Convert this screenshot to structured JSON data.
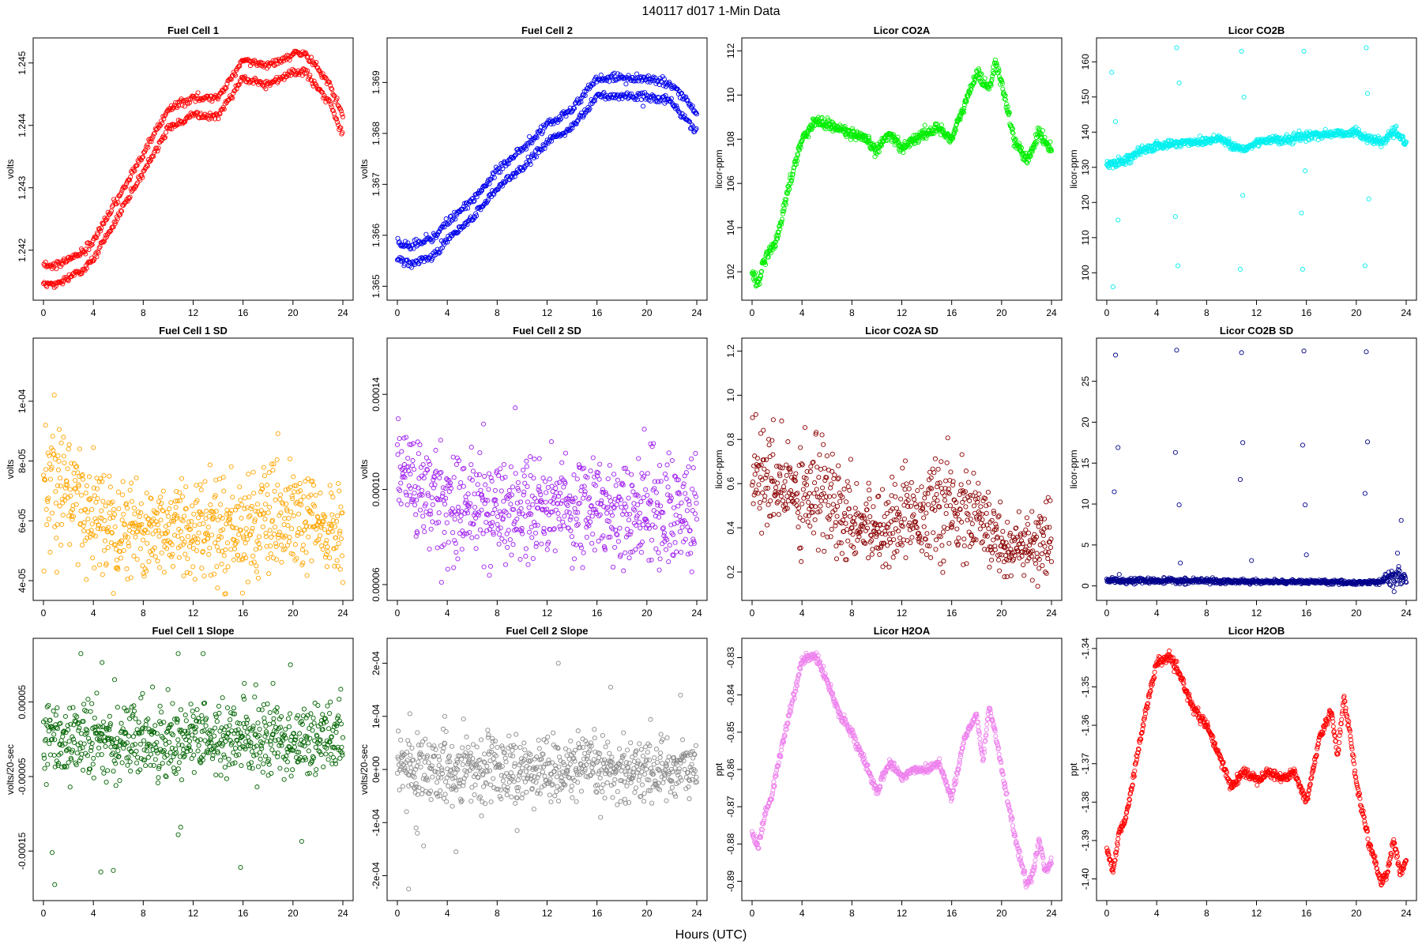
{
  "header": {
    "title": "140117   d017   1-Min Data"
  },
  "xlabel": "Hours (UTC)",
  "x_ticks": [
    "0",
    "4",
    "8",
    "12",
    "16",
    "20",
    "24"
  ],
  "chart_data": [
    {
      "type": "scatter",
      "title": "Fuel Cell 1",
      "ylabel": "volts",
      "color": "#ff0000",
      "xlim": [
        0,
        24
      ],
      "ylim": [
        1.2413,
        1.2453
      ],
      "yticks": [
        1.242,
        1.243,
        1.244,
        1.245
      ],
      "ytick_labels": [
        "1.242",
        "1.243",
        "1.244",
        "1.245"
      ],
      "mode": "trend",
      "noise": 3e-05,
      "split": 0.0003,
      "x": [
        0,
        1,
        2,
        3,
        4,
        6,
        8,
        10,
        12,
        14,
        16,
        18,
        20,
        21,
        23,
        24
      ],
      "y": [
        1.2416,
        1.2416,
        1.2417,
        1.2418,
        1.242,
        1.2427,
        1.2434,
        1.2441,
        1.2443,
        1.2443,
        1.2449,
        1.2448,
        1.245,
        1.245,
        1.2445,
        1.244
      ]
    },
    {
      "type": "scatter",
      "title": "Fuel Cell 2",
      "ylabel": "volts",
      "color": "#0000ee",
      "xlim": [
        0,
        24
      ],
      "ylim": [
        1.36485,
        1.36975
      ],
      "yticks": [
        1.365,
        1.366,
        1.367,
        1.368,
        1.369
      ],
      "ytick_labels": [
        "1.365",
        "1.366",
        "1.367",
        "1.368",
        "1.369"
      ],
      "mode": "trend",
      "noise": 4e-05,
      "split": 0.00035,
      "x": [
        0,
        1,
        2,
        3,
        4,
        6,
        8,
        10,
        12,
        14,
        16,
        18,
        20,
        22,
        23,
        24
      ],
      "y": [
        1.3657,
        1.3656,
        1.3657,
        1.3658,
        1.3661,
        1.3665,
        1.3671,
        1.3675,
        1.368,
        1.3683,
        1.3689,
        1.3689,
        1.3689,
        1.3688,
        1.3685,
        1.3682
      ]
    },
    {
      "type": "scatter",
      "title": "Licor CO2A",
      "ylabel": "licor-ppm",
      "color": "#00ee00",
      "xlim": [
        0,
        24
      ],
      "ylim": [
        101.0,
        112.3
      ],
      "yticks": [
        102,
        104,
        106,
        108,
        110,
        112
      ],
      "ytick_labels": [
        "102",
        "104",
        "106",
        "108",
        "110",
        "112"
      ],
      "mode": "trend",
      "noise": 0.12,
      "split": 0,
      "x": [
        0,
        0.5,
        1,
        1.5,
        2,
        3,
        4,
        5,
        6,
        7,
        8,
        9,
        10,
        11,
        12,
        13,
        14,
        15,
        16,
        17,
        18,
        19,
        19.5,
        20,
        21,
        22,
        23,
        24
      ],
      "y": [
        102.0,
        101.5,
        102.5,
        103.0,
        103.5,
        106.0,
        108.0,
        108.8,
        108.7,
        108.5,
        108.2,
        108.0,
        107.5,
        108.3,
        107.6,
        108.0,
        108.3,
        108.5,
        108.0,
        109.5,
        111.0,
        110.3,
        111.5,
        110.5,
        108.0,
        107.0,
        108.3,
        107.5
      ]
    },
    {
      "type": "scatter",
      "title": "Licor CO2B",
      "ylabel": "licor-ppm",
      "color": "#00f0f0",
      "xlim": [
        0,
        24
      ],
      "ylim": [
        94.0,
        165.0
      ],
      "yticks": [
        100,
        110,
        120,
        130,
        140,
        150,
        160
      ],
      "ytick_labels": [
        "100",
        "110",
        "120",
        "130",
        "140",
        "150",
        "160"
      ],
      "mode": "trend",
      "noise": 0.6,
      "split": 0,
      "x": [
        0,
        1,
        2,
        3,
        4,
        5,
        6,
        8,
        9,
        10,
        11,
        12,
        13,
        14,
        16,
        18,
        20,
        21,
        22,
        23,
        24
      ],
      "y": [
        131,
        131.5,
        133,
        135,
        136,
        136.5,
        137,
        137.5,
        138.5,
        136,
        135,
        137,
        138,
        137.5,
        139,
        139.5,
        140,
        138,
        137,
        140,
        137
      ],
      "spikes": [
        [
          0.4,
          157
        ],
        [
          0.5,
          96
        ],
        [
          0.7,
          143
        ],
        [
          0.9,
          115
        ],
        [
          5.6,
          164
        ],
        [
          5.7,
          102
        ],
        [
          5.8,
          154
        ],
        [
          5.5,
          116
        ],
        [
          10.8,
          163
        ],
        [
          10.7,
          101
        ],
        [
          10.9,
          122
        ],
        [
          11.0,
          150
        ],
        [
          15.8,
          163
        ],
        [
          15.7,
          101
        ],
        [
          15.9,
          129
        ],
        [
          15.6,
          117
        ],
        [
          20.8,
          164
        ],
        [
          20.7,
          102
        ],
        [
          20.9,
          151
        ],
        [
          21.0,
          121
        ]
      ]
    },
    {
      "type": "scatter",
      "title": "Fuel Cell 1 SD",
      "ylabel": "volts",
      "color": "#ffa500",
      "xlim": [
        0,
        24
      ],
      "ylim": [
        3.55e-05,
        0.000119
      ],
      "yticks": [
        4e-05,
        6e-05,
        8e-05,
        0.0001
      ],
      "ytick_labels": [
        "4e-05",
        "6e-05",
        "8e-05",
        "1e-04"
      ],
      "mode": "noise",
      "x": [
        0,
        2,
        4,
        8,
        12,
        16,
        20,
        24
      ],
      "y": [
        7.4e-05,
        6.8e-05,
        6.2e-05,
        5.7e-05,
        5.8e-05,
        5.8e-05,
        6e-05,
        5.5e-05
      ],
      "sd": [
        1.1e-05,
        1e-05,
        9e-06,
        8e-06,
        8e-06,
        9e-06,
        9e-06,
        7e-06
      ]
    },
    {
      "type": "scatter",
      "title": "Fuel Cell 2 SD",
      "ylabel": "volts",
      "color": "#a020f0",
      "xlim": [
        0,
        24
      ],
      "ylim": [
        5.6e-05,
        0.000161
      ],
      "yticks": [
        6e-05,
        0.0001,
        0.00014
      ],
      "ytick_labels": [
        "0.00006",
        "0.00010",
        "0.00014"
      ],
      "mode": "noise",
      "x": [
        0,
        2,
        4,
        8,
        12,
        16,
        20,
        24
      ],
      "y": [
        0.00011,
        9.8e-05,
        9.4e-05,
        9.2e-05,
        9.4e-05,
        9.2e-05,
        9.2e-05,
        9e-05
      ],
      "sd": [
        1.2e-05,
        1.1e-05,
        1.1e-05,
        1.1e-05,
        1.1e-05,
        1.1e-05,
        1.2e-05,
        1.1e-05
      ]
    },
    {
      "type": "scatter",
      "title": "Licor CO2A SD",
      "ylabel": "licor-ppm",
      "color": "#8b0000",
      "xlim": [
        0,
        24
      ],
      "ylim": [
        0.1,
        1.23
      ],
      "yticks": [
        0.2,
        0.4,
        0.6,
        0.8,
        1.0,
        1.2
      ],
      "ytick_labels": [
        "0.2",
        "0.4",
        "0.6",
        "0.8",
        "1.0",
        "1.2"
      ],
      "mode": "noise",
      "x": [
        0,
        2,
        4,
        6,
        8,
        10,
        12,
        14,
        16,
        18,
        20,
        22,
        24
      ],
      "y": [
        0.65,
        0.58,
        0.58,
        0.56,
        0.44,
        0.4,
        0.45,
        0.48,
        0.48,
        0.44,
        0.33,
        0.3,
        0.32
      ],
      "sd": [
        0.12,
        0.11,
        0.12,
        0.14,
        0.09,
        0.08,
        0.09,
        0.1,
        0.11,
        0.1,
        0.08,
        0.07,
        0.08
      ]
    },
    {
      "type": "scatter",
      "title": "Licor CO2B SD",
      "ylabel": "licor-ppm",
      "color": "#00008b",
      "xlim": [
        0,
        24
      ],
      "ylim": [
        -1.0,
        29.5
      ],
      "yticks": [
        0,
        5,
        10,
        15,
        20,
        25
      ],
      "ytick_labels": [
        "0",
        "5",
        "10",
        "15",
        "20",
        "25"
      ],
      "mode": "noise",
      "x": [
        0,
        4,
        8,
        12,
        16,
        20,
        22,
        23,
        24
      ],
      "y": [
        0.7,
        0.6,
        0.6,
        0.5,
        0.5,
        0.4,
        0.5,
        1.2,
        0.8
      ],
      "sd": [
        0.15,
        0.15,
        0.15,
        0.12,
        0.12,
        0.12,
        0.15,
        0.9,
        0.4
      ],
      "spikes": [
        [
          0.6,
          11.5
        ],
        [
          0.7,
          28.2
        ],
        [
          0.9,
          16.9
        ],
        [
          1.0,
          1.4
        ],
        [
          5.6,
          28.8
        ],
        [
          5.5,
          16.3
        ],
        [
          5.8,
          9.9
        ],
        [
          5.9,
          2.8
        ],
        [
          10.7,
          13.0
        ],
        [
          10.8,
          28.5
        ],
        [
          10.9,
          17.5
        ],
        [
          11.6,
          3.1
        ],
        [
          15.8,
          28.7
        ],
        [
          15.7,
          17.2
        ],
        [
          15.9,
          9.9
        ],
        [
          16.0,
          3.8
        ],
        [
          20.7,
          11.3
        ],
        [
          20.8,
          28.6
        ],
        [
          20.9,
          17.6
        ],
        [
          23.6,
          8.0
        ],
        [
          23.3,
          4.0
        ]
      ]
    },
    {
      "type": "scatter",
      "title": "Fuel Cell 1 Slope",
      "ylabel": "volts/20-sec",
      "color": "#006400",
      "xlim": [
        0,
        24
      ],
      "ylim": [
        -0.000208,
        0.000127
      ],
      "yticks": [
        -0.00015,
        -5e-05,
        5e-05
      ],
      "ytick_labels": [
        "-0.00015",
        "-0.00005",
        "0.00005"
      ],
      "mode": "noise",
      "x": [
        0,
        24
      ],
      "y": [
        0.0,
        0.0
      ],
      "sd": [
        2.5e-05,
        2.5e-05
      ],
      "spikes": [
        [
          0.7,
          -0.000152
        ],
        [
          0.9,
          -0.000195
        ],
        [
          4.6,
          -0.000178
        ],
        [
          5.6,
          -0.000176
        ],
        [
          10.8,
          -0.000128
        ],
        [
          11.0,
          -0.000118
        ],
        [
          15.8,
          -0.000172
        ],
        [
          20.7,
          -0.000137
        ],
        [
          3.0,
          0.000115
        ],
        [
          4.7,
          0.000103
        ],
        [
          10.8,
          0.000115
        ],
        [
          12.8,
          0.000115
        ],
        [
          19.8,
          0.0001
        ],
        [
          5.7,
          8e-05
        ],
        [
          16.1,
          7.5e-05
        ],
        [
          18.4,
          7.5e-05
        ]
      ]
    },
    {
      "type": "scatter",
      "title": "Fuel Cell 2 Slope",
      "ylabel": "volts/20-sec",
      "color": "#8c8c8c",
      "xlim": [
        0,
        24
      ],
      "ylim": [
        -0.000235,
        0.000235
      ],
      "yticks": [
        -0.0002,
        -0.0001,
        0.0,
        0.0001,
        0.0002
      ],
      "ytick_labels": [
        "-2e-04",
        "-1e-04",
        "0e+00",
        "1e-04",
        "2e-04"
      ],
      "mode": "noise",
      "x": [
        0,
        24
      ],
      "y": [
        0.0,
        0.0
      ],
      "sd": [
        3e-05,
        3e-05
      ],
      "spikes": [
        [
          0.9,
          -0.000225
        ],
        [
          1.6,
          -0.00012
        ],
        [
          1.5,
          -0.00011
        ],
        [
          4.7,
          -0.000155
        ],
        [
          9.6,
          -0.000115
        ],
        [
          12.9,
          0.0002
        ],
        [
          17.1,
          0.000155
        ],
        [
          22.7,
          0.00014
        ],
        [
          1.0,
          0.000105
        ],
        [
          3.8,
          0.0001
        ],
        [
          5.3,
          9.5e-05
        ]
      ]
    },
    {
      "type": "scatter",
      "title": "Licor H2OA",
      "ylabel": "ppt",
      "color": "#ee82ee",
      "xlim": [
        0,
        24
      ],
      "ylim": [
        -0.8935,
        -0.8265
      ],
      "yticks": [
        -0.89,
        -0.88,
        -0.87,
        -0.86,
        -0.85,
        -0.84,
        -0.83
      ],
      "ytick_labels": [
        "-0.89",
        "-0.88",
        "-0.87",
        "-0.86",
        "-0.85",
        "-0.84",
        "-0.83"
      ],
      "mode": "trend",
      "noise": 0.0006,
      "split": 0,
      "x": [
        0,
        0.5,
        1,
        1.5,
        2,
        3,
        4,
        5,
        6,
        7,
        8,
        9,
        10,
        11,
        12,
        13,
        14,
        15,
        16,
        17,
        18,
        18.5,
        19,
        19.5,
        20,
        21,
        22,
        22.5,
        23,
        23.5,
        24
      ],
      "y": [
        -0.877,
        -0.881,
        -0.872,
        -0.868,
        -0.86,
        -0.845,
        -0.831,
        -0.829,
        -0.836,
        -0.845,
        -0.85,
        -0.858,
        -0.866,
        -0.858,
        -0.862,
        -0.86,
        -0.86,
        -0.858,
        -0.868,
        -0.852,
        -0.845,
        -0.858,
        -0.843,
        -0.85,
        -0.86,
        -0.877,
        -0.891,
        -0.888,
        -0.879,
        -0.887,
        -0.885
      ]
    },
    {
      "type": "scatter",
      "title": "Licor H2OB",
      "ylabel": "ppt",
      "color": "#ff0000",
      "xlim": [
        0,
        24
      ],
      "ylim": [
        -1.404,
        -1.339
      ],
      "yticks": [
        -1.4,
        -1.39,
        -1.38,
        -1.37,
        -1.36,
        -1.35,
        -1.34
      ],
      "ytick_labels": [
        "-1.40",
        "-1.39",
        "-1.38",
        "-1.37",
        "-1.36",
        "-1.35",
        "-1.34"
      ],
      "mode": "trend",
      "noise": 0.0006,
      "split": 0,
      "x": [
        0,
        0.5,
        1,
        1.5,
        2,
        3,
        4,
        5,
        6,
        7,
        8,
        9,
        10,
        11,
        12,
        13,
        14,
        15,
        16,
        17,
        18,
        18.5,
        19,
        19.5,
        20,
        21,
        22,
        22.5,
        23,
        23.5,
        24
      ],
      "y": [
        -1.392,
        -1.398,
        -1.388,
        -1.384,
        -1.376,
        -1.358,
        -1.344,
        -1.342,
        -1.348,
        -1.356,
        -1.36,
        -1.368,
        -1.376,
        -1.372,
        -1.374,
        -1.372,
        -1.374,
        -1.372,
        -1.38,
        -1.364,
        -1.356,
        -1.368,
        -1.353,
        -1.362,
        -1.375,
        -1.39,
        -1.401,
        -1.398,
        -1.39,
        -1.398,
        -1.396
      ]
    }
  ]
}
